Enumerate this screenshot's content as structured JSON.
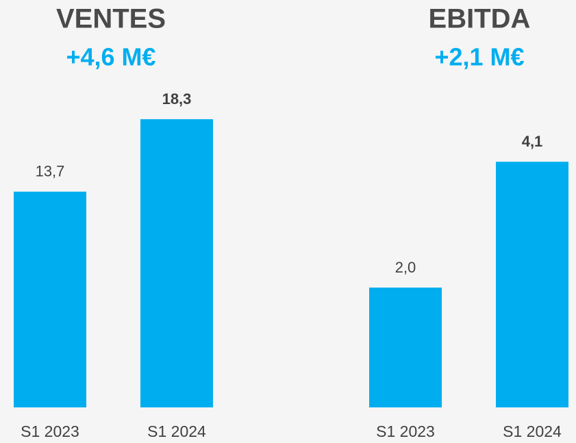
{
  "chart_data": [
    {
      "type": "bar",
      "title": "VENTES",
      "subtitle": "+4,6 M€",
      "categories": [
        "S1 2023",
        "S1 2024"
      ],
      "values": [
        13.7,
        18.3
      ],
      "value_labels": [
        "13,7",
        "18,3"
      ],
      "color": "#00aeef",
      "ylim": [
        0,
        20
      ]
    },
    {
      "type": "bar",
      "title": "EBITDA",
      "subtitle": "+2,1 M€",
      "categories": [
        "S1 2023",
        "S1 2024"
      ],
      "values": [
        2.0,
        4.1
      ],
      "value_labels": [
        "2,0",
        "4,1"
      ],
      "color": "#00aeef",
      "ylim": [
        0,
        5
      ]
    }
  ]
}
